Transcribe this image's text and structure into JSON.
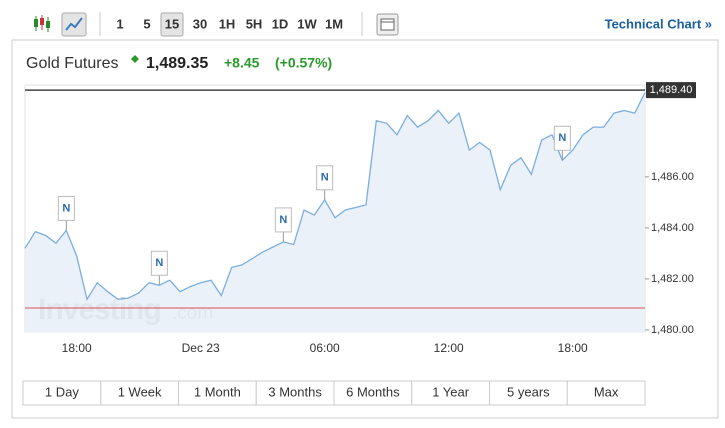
{
  "toolbar": {
    "intervals": [
      "1",
      "5",
      "15",
      "30",
      "1H",
      "5H",
      "1D",
      "1W",
      "1M"
    ],
    "selected_interval": "15",
    "technical_chart": "Technical Chart »"
  },
  "header": {
    "name": "Gold Futures",
    "price": "1,489.35",
    "change": "+8.45",
    "change_percent": "(+0.57%)"
  },
  "chart_data": {
    "type": "area",
    "categories": [
      null,
      null,
      null,
      null,
      null,
      "18:00",
      null,
      null,
      null,
      null,
      null,
      null,
      null,
      null,
      null,
      null,
      null,
      "Dec 23",
      null,
      null,
      null,
      null,
      null,
      null,
      null,
      null,
      null,
      null,
      null,
      "06:00",
      null,
      null,
      null,
      null,
      null,
      null,
      null,
      null,
      null,
      null,
      null,
      "12:00",
      null,
      null,
      null,
      null,
      null,
      null,
      null,
      null,
      null,
      null,
      null,
      "18:00",
      null,
      null,
      null,
      null,
      null,
      null,
      null
    ],
    "values": [
      1483.2,
      1483.85,
      1483.7,
      1483.4,
      1483.9,
      1482.9,
      1481.2,
      1481.85,
      1481.5,
      1481.2,
      1481.25,
      1481.45,
      1481.85,
      1481.75,
      1481.95,
      1481.5,
      1481.7,
      1481.85,
      1481.95,
      1481.35,
      1482.45,
      1482.55,
      1482.8,
      1483.05,
      1483.25,
      1483.45,
      1483.35,
      1484.7,
      1484.5,
      1485.1,
      1484.4,
      1484.7,
      1484.8,
      1484.9,
      1488.2,
      1488.1,
      1487.65,
      1488.4,
      1487.95,
      1488.2,
      1488.6,
      1488.1,
      1488.5,
      1487.05,
      1487.35,
      1487.05,
      1485.5,
      1486.45,
      1486.75,
      1486.1,
      1487.45,
      1487.65,
      1486.65,
      1487.05,
      1487.65,
      1487.95,
      1487.95,
      1488.5,
      1488.6,
      1488.5,
      1489.3
    ],
    "color": "#7aaee0",
    "fill": "#e6eff8",
    "ylim": [
      1479.9,
      1489.6
    ],
    "yticks": [
      {
        "value": 1480,
        "label": "1,480.00"
      },
      {
        "value": 1482,
        "label": "1,482.00"
      },
      {
        "value": 1484,
        "label": "1,484.00"
      },
      {
        "value": 1486,
        "label": "1,486.00"
      }
    ],
    "last_price": {
      "value": 1489.4,
      "label": "1,489.40"
    },
    "reference_line": {
      "value": 1480.86,
      "color": "#d9534f"
    },
    "news_markers": [
      "N",
      "N",
      "N",
      "N",
      "N"
    ]
  },
  "watermark": [
    "Investing",
    ".com"
  ],
  "ranges": [
    "1 Day",
    "1 Week",
    "1 Month",
    "3 Months",
    "6 Months",
    "1 Year",
    "5 years",
    "Max"
  ]
}
